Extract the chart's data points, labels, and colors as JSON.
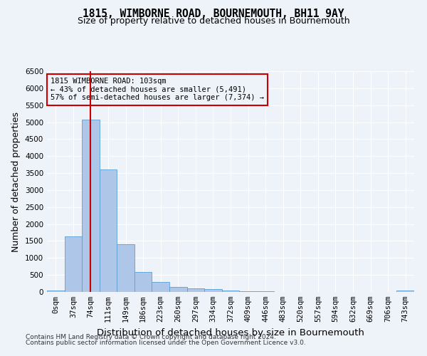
{
  "title": "1815, WIMBORNE ROAD, BOURNEMOUTH, BH11 9AY",
  "subtitle": "Size of property relative to detached houses in Bournemouth",
  "xlabel": "Distribution of detached houses by size in Bournemouth",
  "ylabel": "Number of detached properties",
  "footer_line1": "Contains HM Land Registry data © Crown copyright and database right 2024.",
  "footer_line2": "Contains public sector information licensed under the Open Government Licence v3.0.",
  "bin_labels": [
    "0sqm",
    "37sqm",
    "74sqm",
    "111sqm",
    "149sqm",
    "186sqm",
    "223sqm",
    "260sqm",
    "297sqm",
    "334sqm",
    "372sqm",
    "409sqm",
    "446sqm",
    "483sqm",
    "520sqm",
    "557sqm",
    "594sqm",
    "632sqm",
    "669sqm",
    "706sqm",
    "743sqm"
  ],
  "bar_values": [
    50,
    1630,
    5080,
    3600,
    1400,
    590,
    290,
    150,
    110,
    80,
    50,
    20,
    15,
    10,
    5,
    3,
    2,
    2,
    1,
    1,
    40
  ],
  "bar_color": "#aec6e8",
  "bar_edge_color": "#5a9fd4",
  "ylim": [
    0,
    6500
  ],
  "yticks": [
    0,
    500,
    1000,
    1500,
    2000,
    2500,
    3000,
    3500,
    4000,
    4500,
    5000,
    5500,
    6000,
    6500
  ],
  "property_bin_index": 2,
  "vline_color": "#cc0000",
  "annotation_text_line1": "1815 WIMBORNE ROAD: 103sqm",
  "annotation_text_line2": "← 43% of detached houses are smaller (5,491)",
  "annotation_text_line3": "57% of semi-detached houses are larger (7,374) →",
  "annotation_box_edge_color": "#cc0000",
  "background_color": "#eef2f9",
  "grid_color": "#ffffff",
  "title_fontsize": 10.5,
  "subtitle_fontsize": 9,
  "axis_label_fontsize": 9,
  "tick_fontsize": 7.5,
  "footer_fontsize": 6.5
}
